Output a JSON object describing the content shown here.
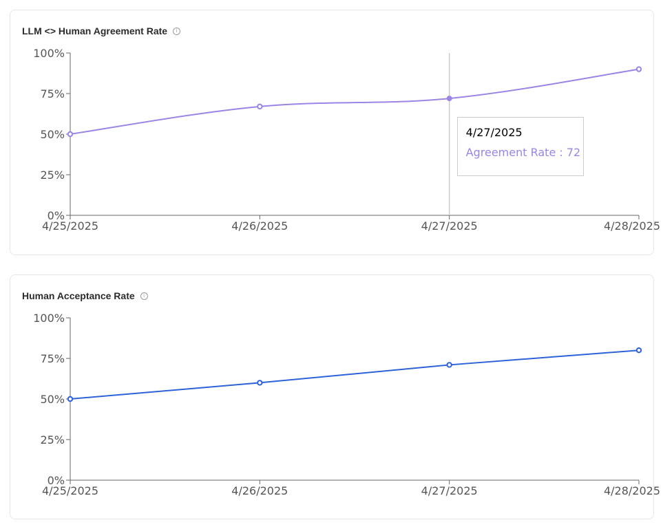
{
  "colors": {
    "agreement": "#9a84e6",
    "acceptance": "#2c62d9",
    "axis": "#666666",
    "hover_line": "#cccccc"
  },
  "cards": {
    "agreement": {
      "title": "LLM <> Human Agreement Rate",
      "info_icon": "info-icon"
    },
    "acceptance": {
      "title": "Human Acceptance Rate",
      "info_icon": "info-icon"
    }
  },
  "tooltip": {
    "label": "4/27/2025",
    "series_name": "Agreement Rate",
    "value": 72,
    "text": "Agreement Rate : 72",
    "index": 2
  },
  "chart_data": [
    {
      "type": "line",
      "title": "LLM <> Human Agreement Rate",
      "x": [
        "4/25/2025",
        "4/26/2025",
        "4/27/2025",
        "4/28/2025"
      ],
      "series": [
        {
          "name": "Agreement Rate",
          "values": [
            50,
            67,
            72,
            90
          ],
          "curve": "smooth"
        }
      ],
      "ylim": [
        0,
        100
      ],
      "yticks": [
        "0%",
        "25%",
        "50%",
        "75%",
        "100%"
      ],
      "grid": false,
      "xlabel": "",
      "ylabel": ""
    },
    {
      "type": "line",
      "title": "Human Acceptance Rate",
      "x": [
        "4/25/2025",
        "4/26/2025",
        "4/27/2025",
        "4/28/2025"
      ],
      "series": [
        {
          "values": [
            50,
            60,
            71,
            80
          ],
          "curve": "linear"
        }
      ],
      "ylim": [
        0,
        100
      ],
      "yticks": [
        "0%",
        "25%",
        "50%",
        "75%",
        "100%"
      ],
      "grid": false,
      "xlabel": "",
      "ylabel": ""
    }
  ]
}
